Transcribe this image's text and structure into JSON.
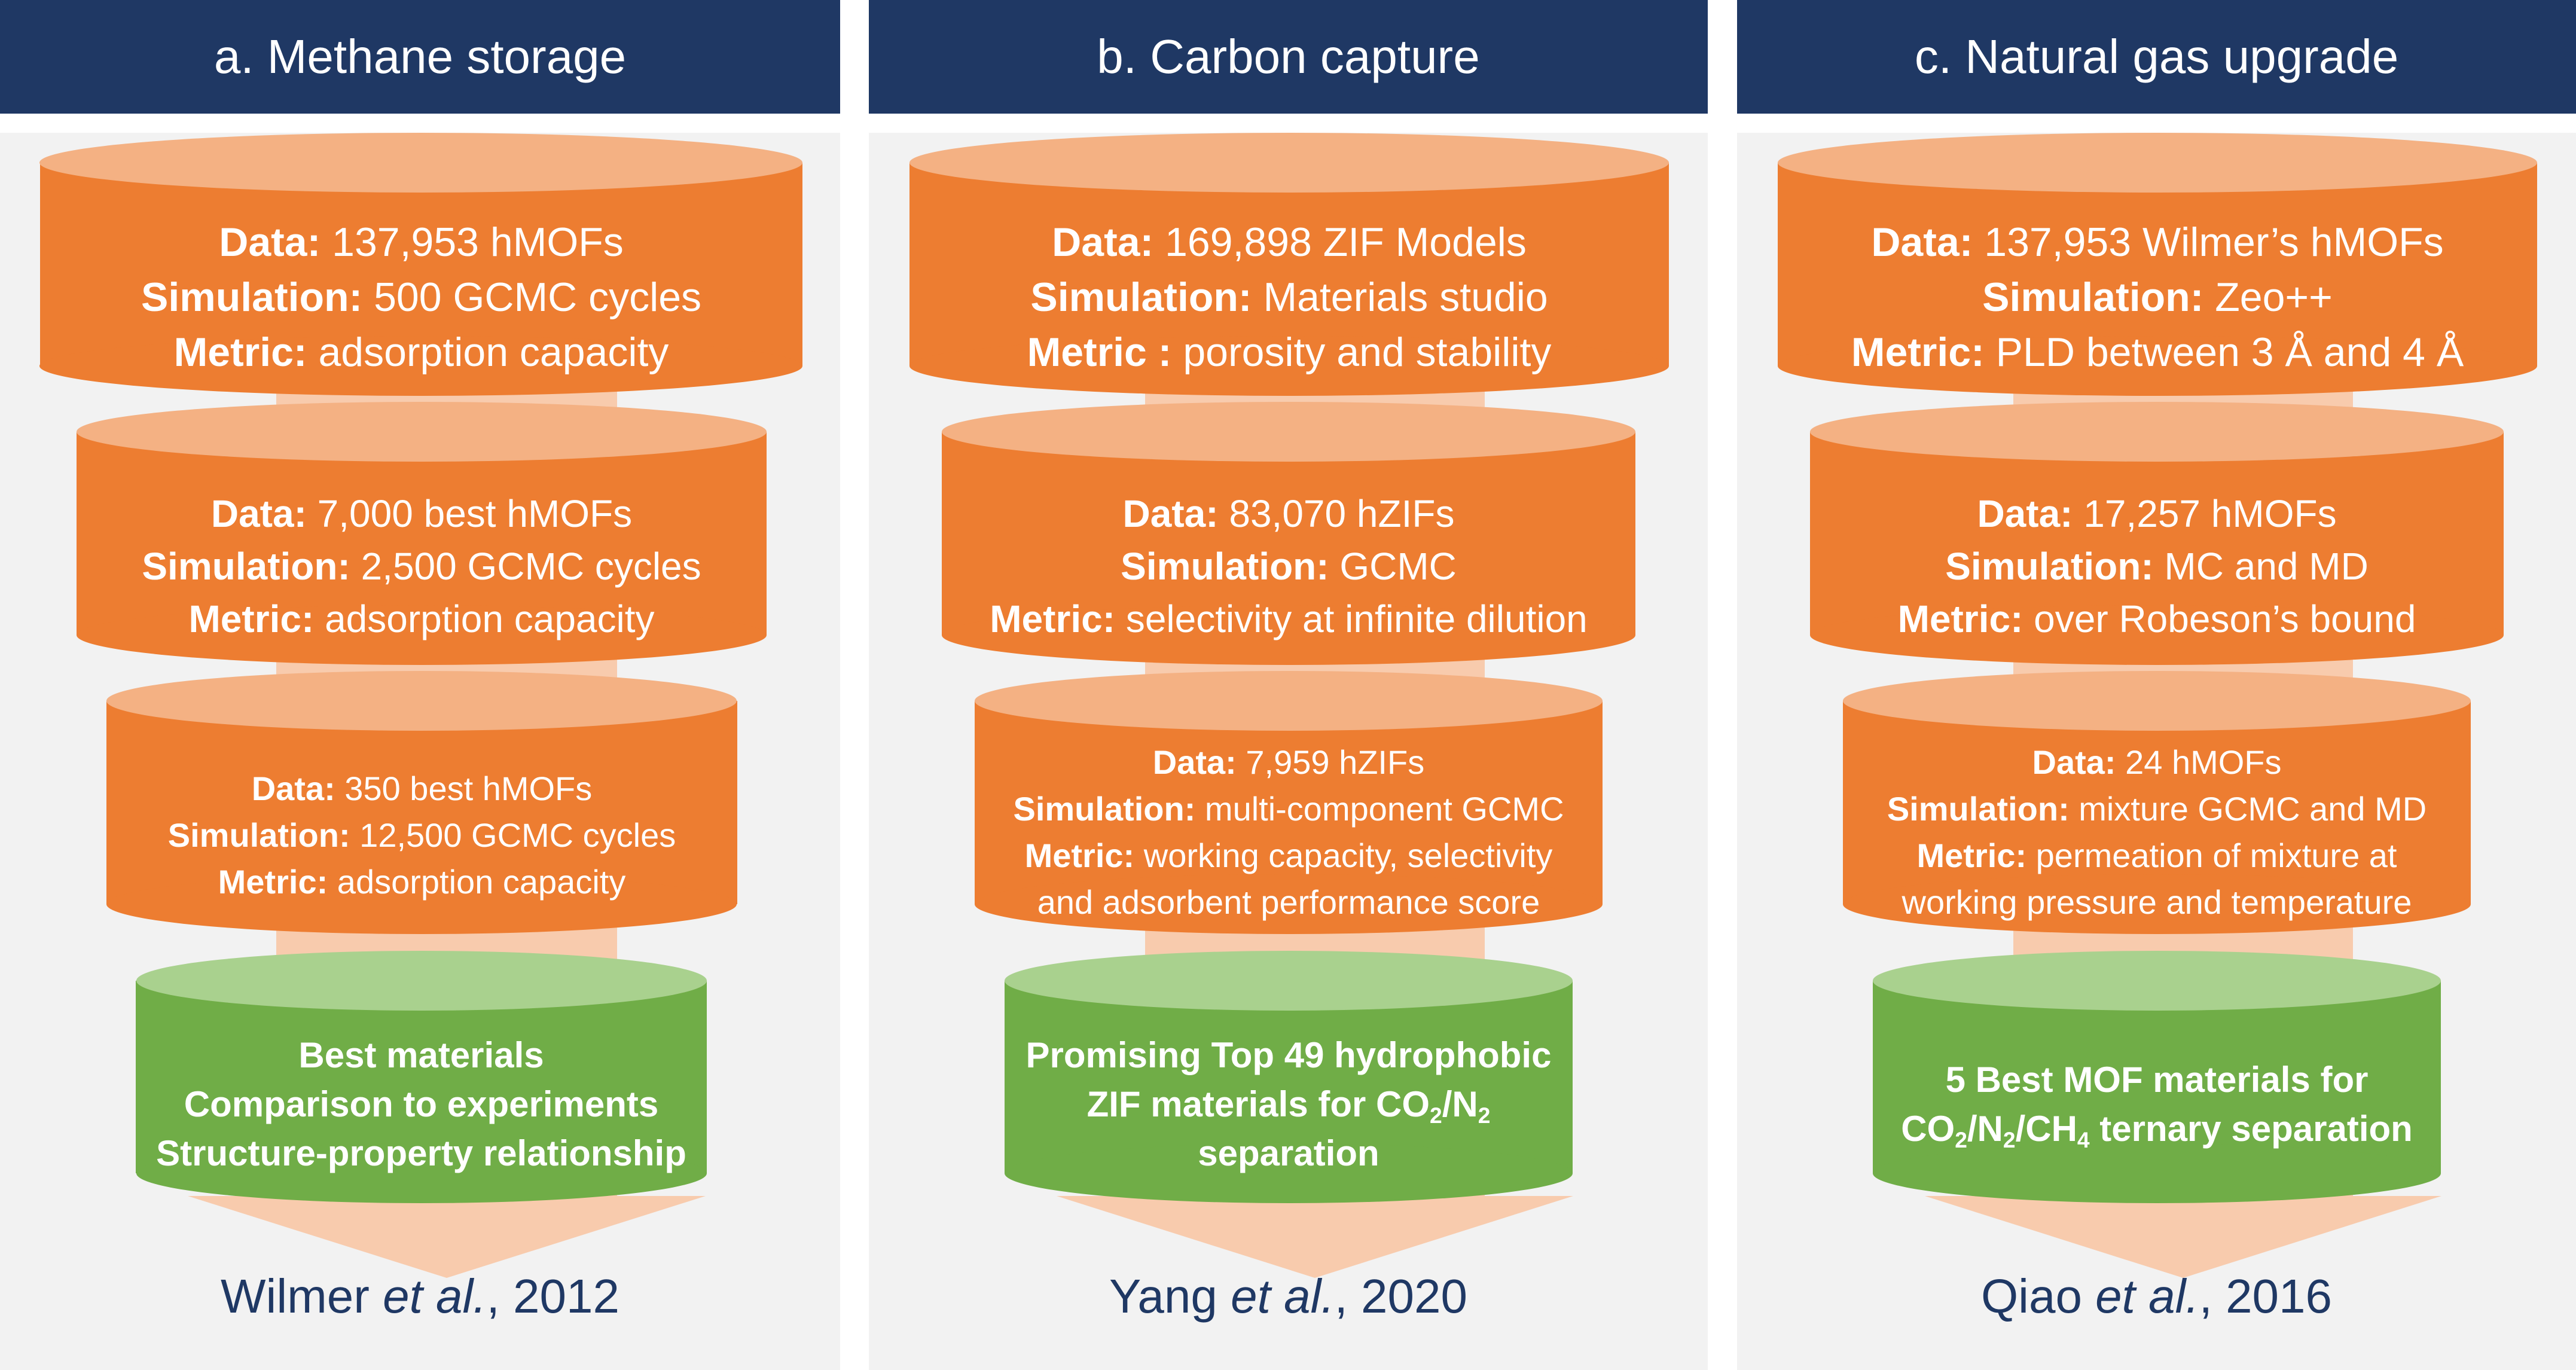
{
  "colors": {
    "header_bg": "#1f3864",
    "panel_bg": "#f2f2f2",
    "tier_orange": "#ed7d31",
    "tier_orange_top": "#f4b183",
    "final_green": "#70ad47",
    "final_green_top": "#a9d18e",
    "arrow": "#f8cbad",
    "citation": "#1f3864"
  },
  "panels": [
    {
      "title": "a. Methane storage",
      "tiers": [
        {
          "data_label": "Data:",
          "data_value": " 137,953 hMOFs",
          "sim_label": "Simulation:",
          "sim_value": " 500 GCMC cycles",
          "metric_label": "Metric:",
          "metric_value": " adsorption capacity"
        },
        {
          "data_label": "Data:",
          "data_value": " 7,000 best hMOFs",
          "sim_label": "Simulation:",
          "sim_value": " 2,500 GCMC cycles",
          "metric_label": "Metric:",
          "metric_value": " adsorption capacity"
        },
        {
          "data_label": "Data:",
          "data_value": " 350 best hMOFs",
          "sim_label": "Simulation:",
          "sim_value": " 12,500 GCMC cycles",
          "metric_label": "Metric:",
          "metric_value": " adsorption capacity"
        }
      ],
      "final_lines": [
        "Best materials",
        "Comparison to experiments",
        "Structure-property relationship"
      ],
      "citation": {
        "author": "Wilmer ",
        "etal": "et al.",
        "year": ", 2012"
      }
    },
    {
      "title": "b. Carbon capture",
      "tiers": [
        {
          "data_label": "Data:",
          "data_value": " 169,898 ZIF Models",
          "sim_label": "Simulation:",
          "sim_value": " Materials studio",
          "metric_label": "Metric :",
          "metric_value": " porosity and stability"
        },
        {
          "data_label": "Data:",
          "data_value": " 83,070 hZIFs",
          "sim_label": "Simulation:",
          "sim_value": " GCMC",
          "metric_label": "Metric:",
          "metric_value": " selectivity at infinite dilution"
        },
        {
          "data_label": "Data:",
          "data_value": " 7,959 hZIFs",
          "sim_label": "Simulation:",
          "sim_value": " multi-component GCMC",
          "metric_label": "Metric:",
          "metric_value": " working capacity, selectivity",
          "extra_line": "and adsorbent performance score"
        }
      ],
      "final_lines": [
        "Promising Top 49 hydrophobic"
      ],
      "final_formula": {
        "pre": "ZIF materials for CO",
        "sub1": "2",
        "mid": "/N",
        "sub2": "2"
      },
      "final_tail": "separation",
      "citation": {
        "author": "Yang ",
        "etal": "et al.",
        "year": ", 2020"
      }
    },
    {
      "title": "c. Natural gas upgrade",
      "tiers": [
        {
          "data_label": "Data:",
          "data_value": " 137,953 Wilmer’s hMOFs",
          "sim_label": "Simulation:",
          "sim_value": " Zeo++",
          "metric_label": "Metric:",
          "metric_value": " PLD between 3 Å and 4 Å"
        },
        {
          "data_label": "Data:",
          "data_value": " 17,257 hMOFs",
          "sim_label": "Simulation:",
          "sim_value": " MC and MD",
          "metric_label": "Metric:",
          "metric_value": " over Robeson’s bound"
        },
        {
          "data_label": "Data:",
          "data_value": " 24 hMOFs",
          "sim_label": "Simulation:",
          "sim_value": " mixture GCMC and MD",
          "metric_label": "Metric:",
          "metric_value": " permeation of mixture at",
          "extra_line": "working pressure and temperature"
        }
      ],
      "final_lines": [
        "5 Best MOF materials for"
      ],
      "final_formula": {
        "pre": "CO",
        "sub1": "2",
        "mid": "/N",
        "sub2": "2",
        "mid2": "/CH",
        "sub3": "4",
        "post": " ternary separation"
      },
      "citation": {
        "author": "Qiao ",
        "etal": "et al.",
        "year": ", 2016"
      }
    }
  ]
}
